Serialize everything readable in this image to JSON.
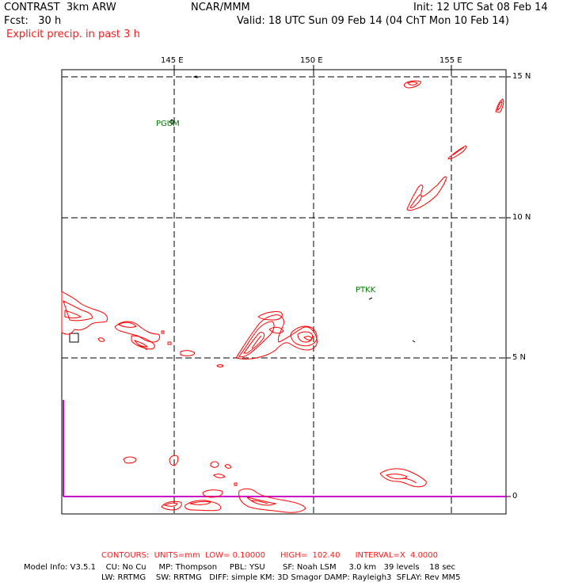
{
  "header": {
    "model": "CONTRAST  3km ARW",
    "org": "NCAR/MMM",
    "init": "Init: 12 UTC Sat 08 Feb 14",
    "fcst": "Fcst:   30 h",
    "valid": "Valid: 18 UTC Sun 09 Feb 14 (04 ChT Mon 10 Feb 14)",
    "field": "Explicit precip. in past 3 h"
  },
  "map": {
    "lon_labels": [
      "145 E",
      "150 E",
      "155 E"
    ],
    "lat_labels": [
      "15 N",
      "10 N",
      "5 N",
      "0"
    ],
    "stations": [
      "PGUM",
      "PTKK"
    ],
    "colors": {
      "contour": "#ff0000",
      "grid": "#000000",
      "equator": "#cc00cc",
      "station": "#008000"
    }
  },
  "footer": {
    "contours": "CONTOURS:  UNITS=mm  LOW= 0.10000      HIGH=  102.40      INTERVAL=X  4.0000",
    "model_info_1": "Model Info: V3.5.1    CU: No Cu     MP: Thompson     PBL: YSU       SF: Noah LSM     3.0 km   39 levels    18 sec",
    "model_info_2": "LW: RRTMG    SW: RRTMG   DIFF: simple KM: 3D Smagor DAMP: Rayleigh3  SFLAY: Rev MM5"
  }
}
